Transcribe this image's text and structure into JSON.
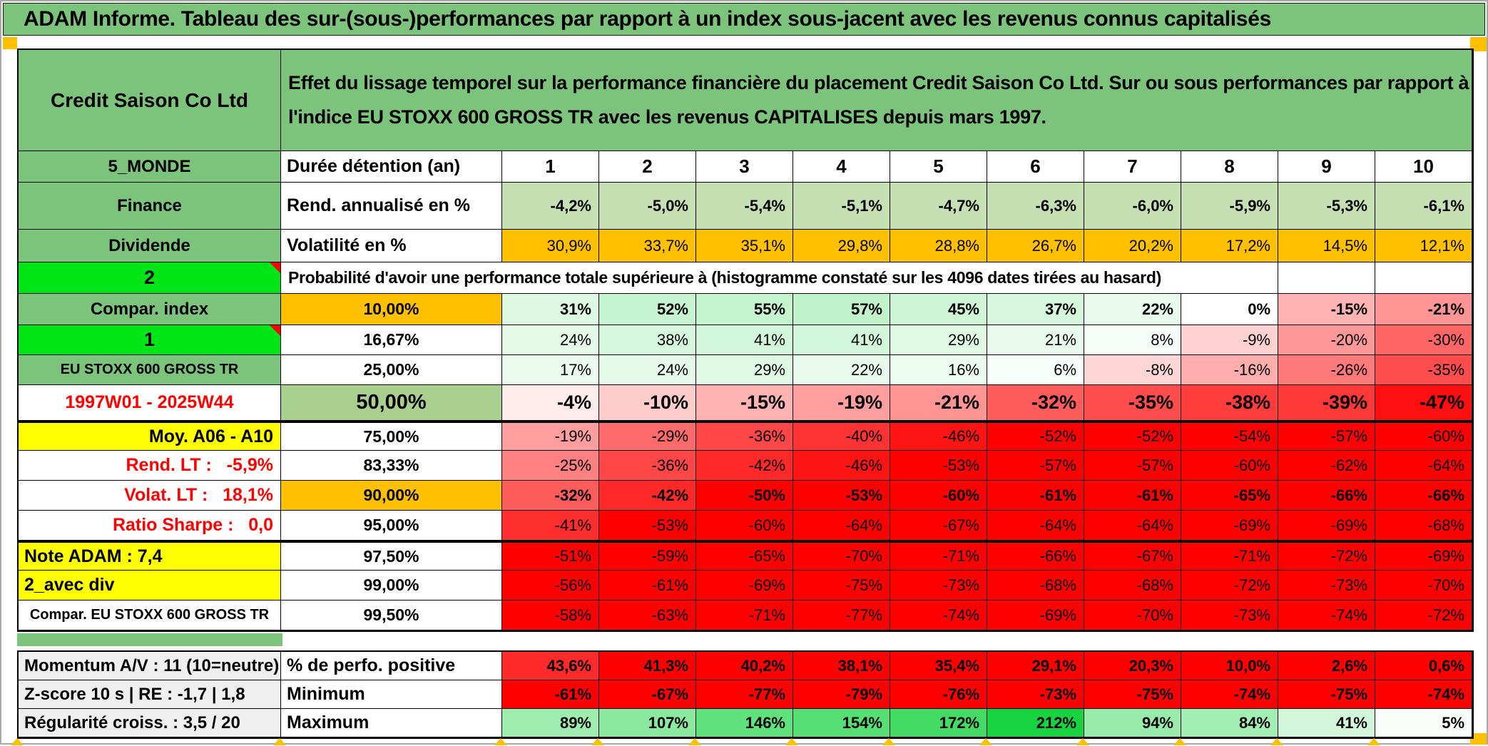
{
  "page": {
    "title": "ADAM Informe. Tableau des sur-(sous-)performances par rapport à un index sous-jacent avec les revenus connus capitalisés"
  },
  "header": {
    "company": "Credit Saison Co Ltd",
    "description": "Effet du lissage temporel sur la performance financière du placement Credit Saison Co Ltd. Sur ou sous performances par rapport à l'indice EU STOXX 600 GROSS TR avec les revenus CAPITALISES depuis mars 1997."
  },
  "colors": {
    "green": "#7CC47C",
    "lime": "#00E515",
    "orange": "#FFC000",
    "yellow": "#FFFF00",
    "light_green": "#C6E0B4",
    "mid_green": "#A9D08E",
    "gray": "#EFEFEF",
    "red": "#FE0000",
    "red_light": "#FF2B2B",
    "red_text": "#FF0000",
    "scale": {
      "neg_limit": -50,
      "pos_limit": 212,
      "pos_target": [
        23,
        211,
        63
      ]
    }
  },
  "table": {
    "top_rows": [
      {
        "left": {
          "t": "5_MONDE",
          "s": "green"
        },
        "mid": {
          "t": "Durée détention (an)",
          "s": "mid-left"
        },
        "cells": [
          "1",
          "2",
          "3",
          "4",
          "5",
          "6",
          "7",
          "8",
          "9",
          "10"
        ],
        "cs": "year"
      },
      {
        "left": {
          "t": "Finance",
          "s": "green"
        },
        "mid": {
          "t": "Rend. annualisé en %",
          "s": "mid-left"
        },
        "cells": [
          "-4,2%",
          "-5,0%",
          "-5,4%",
          "-5,1%",
          "-4,7%",
          "-6,3%",
          "-6,0%",
          "-5,9%",
          "-5,3%",
          "-6,1%"
        ],
        "bg": "light_green",
        "cs": "val bold"
      },
      {
        "left": {
          "t": "Dividende",
          "s": "green"
        },
        "mid": {
          "t": "Volatilité en %",
          "s": "mid-left"
        },
        "cells": [
          "30,9%",
          "33,7%",
          "35,1%",
          "29,8%",
          "28,8%",
          "26,7%",
          "20,2%",
          "17,2%",
          "14,5%",
          "12,1%"
        ],
        "bg": "orange",
        "cs": "val"
      }
    ],
    "prob_row": {
      "left": {
        "t": "2",
        "s": "lime",
        "corner": true
      },
      "text": "Probabilité d'avoir une performance totale supérieure à (histogramme constaté sur les 4096 dates tirées au hasard)"
    },
    "hist_rows": [
      {
        "left": {
          "t": "Compar. index",
          "s": "green"
        },
        "mid": {
          "t": "10,00%",
          "s": "mid-orange"
        },
        "v": [
          31,
          52,
          55,
          57,
          45,
          37,
          22,
          0,
          -15,
          -21
        ],
        "cs": "val bold"
      },
      {
        "left": {
          "t": "1",
          "s": "lime",
          "corner": true
        },
        "mid": {
          "t": "16,67%",
          "s": "mid-white"
        },
        "v": [
          24,
          38,
          41,
          41,
          29,
          21,
          8,
          -9,
          -20,
          -30
        ],
        "cs": "val"
      },
      {
        "left": {
          "t": "EU STOXX 600 GROSS TR",
          "s": "green small"
        },
        "mid": {
          "t": "25,00%",
          "s": "mid-white"
        },
        "v": [
          17,
          24,
          29,
          22,
          16,
          6,
          -8,
          -16,
          -26,
          -35
        ],
        "cs": "val"
      },
      {
        "left": {
          "t": "1997W01 - 2025W44",
          "s": "redbold"
        },
        "mid": {
          "t": "50,00%",
          "s": "mid-green50"
        },
        "v": [
          -4,
          -10,
          -15,
          -19,
          -21,
          -32,
          -35,
          -38,
          -39,
          -47
        ],
        "cs": "val big"
      },
      {
        "left": {
          "t": "Moy. A06 - A10",
          "s": "yellow rightal"
        },
        "mid": {
          "t": "75,00%",
          "s": "mid-white"
        },
        "v": [
          -19,
          -29,
          -36,
          -40,
          -46,
          -52,
          -52,
          -54,
          -57,
          -60
        ],
        "cs": "val",
        "row": "thick-top"
      },
      {
        "left": {
          "t": "Rend. LT :   -5,9%",
          "s": "redbold rightal"
        },
        "mid": {
          "t": "83,33%",
          "s": "mid-white"
        },
        "v": [
          -25,
          -36,
          -42,
          -46,
          -53,
          -57,
          -57,
          -60,
          -62,
          -64
        ],
        "cs": "val"
      },
      {
        "left": {
          "t": "Volat. LT :   18,1%",
          "s": "redbold rightal"
        },
        "mid": {
          "t": "90,00%",
          "s": "mid-orange"
        },
        "v": [
          -32,
          -42,
          -50,
          -53,
          -60,
          -61,
          -61,
          -65,
          -66,
          -66
        ],
        "cs": "val bold"
      },
      {
        "left": {
          "t": "Ratio Sharpe :   0,0",
          "s": "redbold rightal"
        },
        "mid": {
          "t": "95,00%",
          "s": "mid-white"
        },
        "v": [
          -41,
          -53,
          -60,
          -64,
          -67,
          -64,
          -64,
          -69,
          -69,
          -68
        ],
        "cs": "val"
      },
      {
        "left": {
          "t": "Note ADAM : 7,4",
          "s": "yellow leftal"
        },
        "mid": {
          "t": "97,50%",
          "s": "mid-white"
        },
        "v": [
          -51,
          -59,
          -65,
          -70,
          -71,
          -66,
          -67,
          -71,
          -72,
          -69
        ],
        "cs": "val",
        "row": "thick-top"
      },
      {
        "left": {
          "t": "2_avec div",
          "s": "yellow leftal"
        },
        "mid": {
          "t": "99,00%",
          "s": "mid-white"
        },
        "v": [
          -56,
          -61,
          -69,
          -75,
          -73,
          -68,
          -68,
          -72,
          -73,
          -70
        ],
        "cs": "val"
      },
      {
        "left": {
          "t": "Compar. EU STOXX 600 GROSS TR",
          "s": "plain small"
        },
        "mid": {
          "t": "99,50%",
          "s": "mid-white"
        },
        "v": [
          -58,
          -63,
          -71,
          -77,
          -74,
          -69,
          -70,
          -73,
          -74,
          -72
        ],
        "cs": "val"
      }
    ],
    "footer_rows": [
      {
        "left": {
          "t": "Momentum A/V : 11 (10=neutre)",
          "s": "gray"
        },
        "mid": {
          "t": "% de perfo. positive",
          "s": "mid-left"
        },
        "cells": [
          "43,6%",
          "41,3%",
          "40,2%",
          "38,1%",
          "35,4%",
          "29,1%",
          "20,3%",
          "10,0%",
          "2,6%",
          "0,6%"
        ],
        "bg": "red",
        "first_bg": "red_light",
        "cs": "val bold"
      },
      {
        "left": {
          "t": "Z-score 10 s | RE : -1,7 | 1,8",
          "s": "gray"
        },
        "mid": {
          "t": "Minimum",
          "s": "mid-left"
        },
        "cells": [
          "-61%",
          "-67%",
          "-77%",
          "-79%",
          "-76%",
          "-73%",
          "-75%",
          "-74%",
          "-75%",
          "-74%"
        ],
        "bg": "red",
        "cs": "val bold"
      },
      {
        "left": {
          "t": "Régularité croiss. : 3,5 / 20",
          "s": "gray"
        },
        "mid": {
          "t": "Maximum",
          "s": "mid-left"
        },
        "v": [
          89,
          107,
          146,
          154,
          172,
          212,
          94,
          84,
          41,
          5
        ],
        "cs": "val bold"
      }
    ]
  }
}
